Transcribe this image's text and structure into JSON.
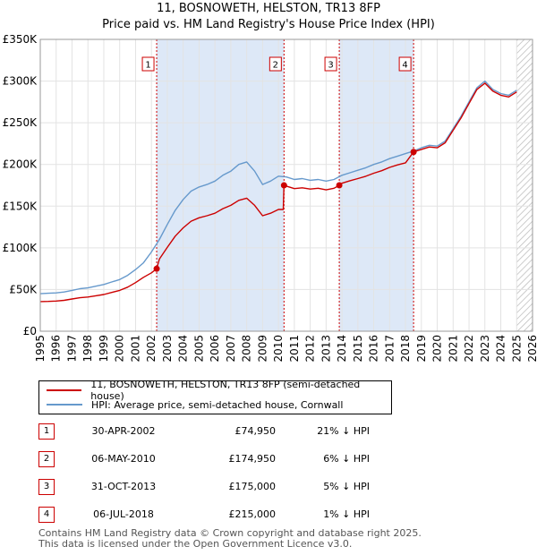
{
  "title_line1": "11, BOSNOWETH, HELSTON, TR13 8FP",
  "title_line2": "Price paid vs. HM Land Registry's House Price Index (HPI)",
  "colors": {
    "property": "#cc0000",
    "hpi": "#6699cc",
    "shade": "#dde8f7",
    "vline": "#cc0000"
  },
  "legend": {
    "property": "11, BOSNOWETH, HELSTON, TR13 8FP (semi-detached house)",
    "hpi": "HPI: Average price, semi-detached house, Cornwall"
  },
  "sales": [
    {
      "num": "1",
      "date": "30-APR-2002",
      "price": "£74,950",
      "hpi": "21% ↓ HPI"
    },
    {
      "num": "2",
      "date": "06-MAY-2010",
      "price": "£174,950",
      "hpi": "6% ↓ HPI"
    },
    {
      "num": "3",
      "date": "31-OCT-2013",
      "price": "£175,000",
      "hpi": "5% ↓ HPI"
    },
    {
      "num": "4",
      "date": "06-JUL-2018",
      "price": "£215,000",
      "hpi": "1% ↓ HPI"
    }
  ],
  "footer_line1": "Contains HM Land Registry data © Crown copyright and database right 2025.",
  "footer_line2": "This data is licensed under the Open Government Licence v3.0.",
  "chart_data": {
    "type": "line",
    "title": "11, BOSNOWETH, HELSTON, TR13 8FP — Price paid vs. HM Land Registry's House Price Index (HPI)",
    "xlabel": "",
    "ylabel": "",
    "xlim": [
      1995,
      2026
    ],
    "ylim": [
      0,
      350000
    ],
    "x_ticks": [
      1995,
      1996,
      1997,
      1998,
      1999,
      2000,
      2001,
      2002,
      2003,
      2004,
      2005,
      2006,
      2007,
      2008,
      2009,
      2010,
      2011,
      2012,
      2013,
      2014,
      2015,
      2016,
      2017,
      2018,
      2019,
      2020,
      2021,
      2022,
      2023,
      2024,
      2025,
      2026
    ],
    "y_ticks": [
      {
        "value": 0,
        "label": "£0"
      },
      {
        "value": 50000,
        "label": "£50K"
      },
      {
        "value": 100000,
        "label": "£100K"
      },
      {
        "value": 150000,
        "label": "£150K"
      },
      {
        "value": 200000,
        "label": "£200K"
      },
      {
        "value": 250000,
        "label": "£250K"
      },
      {
        "value": 300000,
        "label": "£300K"
      },
      {
        "value": 350000,
        "label": "£350K"
      }
    ],
    "grid": true,
    "shaded_periods": [
      [
        2002.33,
        2010.35
      ],
      [
        2013.83,
        2018.51
      ]
    ],
    "hatched_after": 2025.0,
    "sale_markers": [
      {
        "label": "1",
        "x": 2002.33,
        "y": 74950
      },
      {
        "label": "2",
        "x": 2010.35,
        "y": 174950
      },
      {
        "label": "3",
        "x": 2013.83,
        "y": 175000
      },
      {
        "label": "4",
        "x": 2018.51,
        "y": 215000
      }
    ],
    "series": [
      {
        "name": "HPI: Average price, semi-detached house, Cornwall",
        "x": [
          1995,
          1995.5,
          1996,
          1996.5,
          1997,
          1997.5,
          1998,
          1998.5,
          1999,
          1999.5,
          2000,
          2000.5,
          2001,
          2001.5,
          2002,
          2002.5,
          2003,
          2003.5,
          2004,
          2004.5,
          2005,
          2005.5,
          2006,
          2006.5,
          2007,
          2007.5,
          2008,
          2008.5,
          2009,
          2009.5,
          2010,
          2010.5,
          2011,
          2011.5,
          2012,
          2012.5,
          2013,
          2013.5,
          2014,
          2014.5,
          2015,
          2015.5,
          2016,
          2016.5,
          2017,
          2017.5,
          2018,
          2018.5,
          2019,
          2019.5,
          2020,
          2020.5,
          2021,
          2021.5,
          2022,
          2022.5,
          2023,
          2023.5,
          2024,
          2024.5,
          2025
        ],
        "values": [
          45000,
          45500,
          46000,
          47000,
          49000,
          51000,
          52000,
          54000,
          56000,
          59000,
          62000,
          67000,
          74000,
          82000,
          95000,
          110000,
          128000,
          145000,
          158000,
          168000,
          173000,
          176000,
          180000,
          187000,
          192000,
          200000,
          203000,
          192000,
          176000,
          180000,
          186000,
          185000,
          182000,
          183000,
          181000,
          182000,
          180000,
          182000,
          187000,
          190000,
          193000,
          196000,
          200000,
          203000,
          207000,
          210000,
          213000,
          216000,
          220000,
          223000,
          222000,
          228000,
          243000,
          258000,
          275000,
          292000,
          300000,
          290000,
          285000,
          283000,
          289000
        ]
      },
      {
        "name": "11, BOSNOWETH, HELSTON, TR13 8FP (semi-detached house)",
        "x": [
          1995,
          1995.5,
          1996,
          1996.5,
          1997,
          1997.5,
          1998,
          1998.5,
          1999,
          1999.5,
          2000,
          2000.5,
          2001,
          2001.5,
          2002,
          2002.33,
          2002.5,
          2003,
          2003.5,
          2004,
          2004.5,
          2005,
          2005.5,
          2006,
          2006.5,
          2007,
          2007.5,
          2008,
          2008.5,
          2009,
          2009.5,
          2010,
          2010.3,
          2010.35,
          2010.5,
          2011,
          2011.5,
          2012,
          2012.5,
          2013,
          2013.5,
          2013.83,
          2014,
          2014.5,
          2015,
          2015.5,
          2016,
          2016.5,
          2017,
          2017.5,
          2018,
          2018.51,
          2019,
          2019.5,
          2020,
          2020.5,
          2021,
          2021.5,
          2022,
          2022.5,
          2023,
          2023.5,
          2024,
          2024.5,
          2025
        ],
        "values": [
          35500,
          35800,
          36200,
          37000,
          38600,
          40200,
          41000,
          42500,
          44000,
          46500,
          49000,
          52800,
          58300,
          64600,
          70000,
          74950,
          86500,
          100500,
          114000,
          124000,
          132000,
          136000,
          138500,
          141500,
          147000,
          151000,
          157000,
          159500,
          151000,
          138500,
          141500,
          146000,
          146000,
          174950,
          174000,
          171000,
          172000,
          170500,
          171500,
          169500,
          171500,
          175000,
          177500,
          180500,
          183000,
          185800,
          189500,
          192500,
          196500,
          199500,
          202000,
          215000,
          218000,
          221000,
          220000,
          226000,
          241000,
          256000,
          273000,
          290000,
          297500,
          288000,
          283000,
          281000,
          287000
        ]
      }
    ]
  }
}
